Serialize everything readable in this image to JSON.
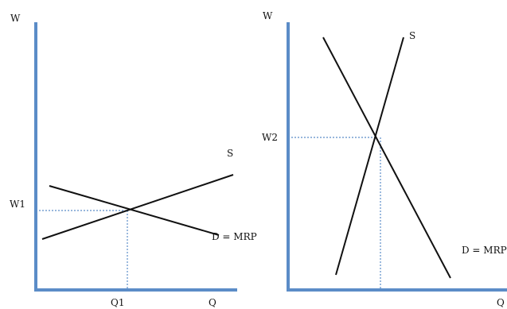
{
  "colors": {
    "axis": "#5b8cc7",
    "curve": "#111111",
    "guide": "#5b8cc7",
    "background": "#ffffff"
  },
  "left_panel": {
    "y_axis_label": "W",
    "x_axis_label": "Q",
    "wage_label": "W1",
    "quantity_label": "Q1",
    "supply_label": "S",
    "demand_label": "D = MRP"
  },
  "right_panel": {
    "y_axis_label": "W",
    "x_axis_label": "Q",
    "wage_label": "W2",
    "supply_label": "S",
    "demand_label": "D = MRP"
  }
}
